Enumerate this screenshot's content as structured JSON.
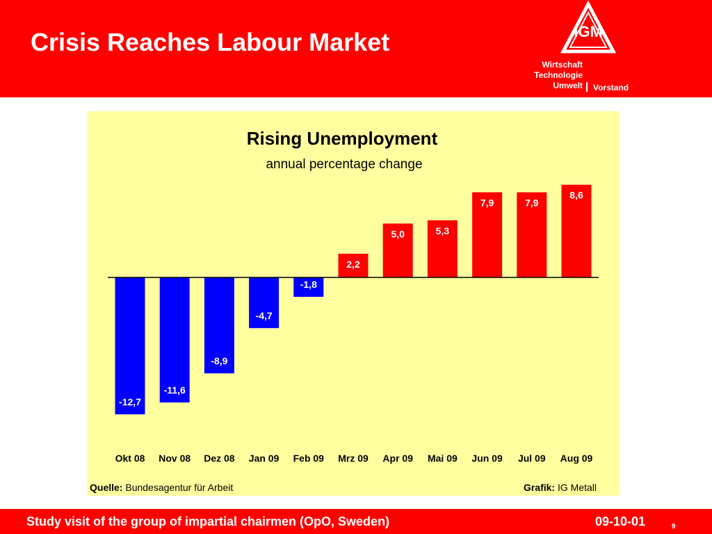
{
  "header": {
    "title": "Crisis Reaches Labour Market",
    "logo_text": "IGM",
    "department_lines": [
      "Wirtschaft",
      "Technologie",
      "Umwelt"
    ],
    "organisation": "Vorstand"
  },
  "source": {
    "label": "Quelle:",
    "value": "Bundesagentur für Arbeit"
  },
  "graphic": {
    "label": "Grafik:",
    "value": "IG Metall"
  },
  "footer": {
    "text": "Study visit of the group of impartial chairmen (OpO, Sweden)",
    "date": "09-10-01",
    "page": "9"
  },
  "colors": {
    "brand_red": "#ff0000",
    "panel_yellow": "#ffffa0",
    "negative_bar": "#0000ff",
    "positive_bar": "#ff0000"
  },
  "chart_data": {
    "type": "bar",
    "title": "Rising Unemployment",
    "subtitle": "annual percentage change",
    "categories": [
      "Okt 08",
      "Nov 08",
      "Dez 08",
      "Jan 09",
      "Feb 09",
      "Mrz 09",
      "Apr 09",
      "Mai 09",
      "Jun 09",
      "Jul 09",
      "Aug 09"
    ],
    "values": [
      -12.7,
      -11.6,
      -8.9,
      -4.7,
      -1.8,
      2.2,
      5.0,
      5.3,
      7.9,
      7.9,
      8.6
    ],
    "labels": [
      "-12,7",
      "-11,6",
      "-8,9",
      "-4,7",
      "-1,8",
      "2,2",
      "5,0",
      "5,3",
      "7,9",
      "7,9",
      "8,6"
    ],
    "xlabel": "",
    "ylabel": "",
    "ylim": [
      -13.5,
      9
    ],
    "grid": false,
    "legend": "none"
  }
}
